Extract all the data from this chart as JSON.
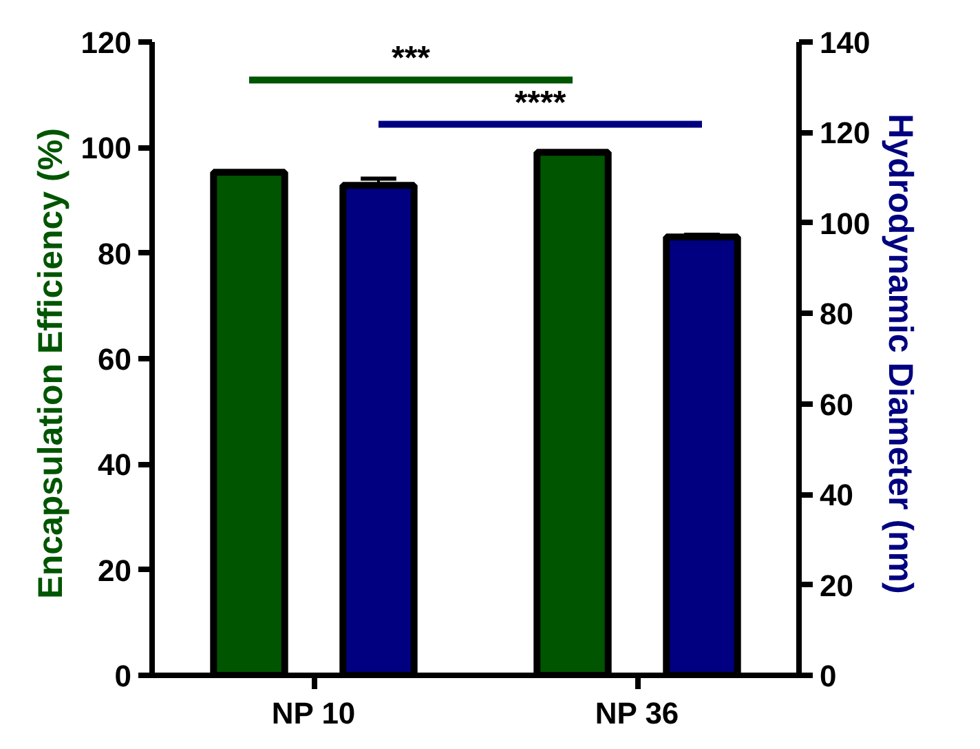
{
  "chart_data": {
    "type": "bar",
    "categories": [
      "NP 10",
      "NP 36"
    ],
    "series": [
      {
        "color": "#005500",
        "values": [
          95.3,
          99.1
        ]
      },
      {
        "color": "#000080",
        "values": [
          108.3,
          96.9
        ],
        "axis": "y2",
        "errors": [
          1.5,
          0.5
        ]
      }
    ],
    "ylabel": "Encapsulation Efficiency  (%)",
    "y2label": "Hydrodynamic  Diameter (nm)",
    "ylim": [
      0,
      120
    ],
    "yticks": [
      0,
      20,
      40,
      60,
      80,
      100,
      120
    ],
    "y2lim": [
      0,
      140
    ],
    "y2ticks": [
      0,
      20,
      40,
      60,
      80,
      100,
      120,
      140
    ],
    "annotations": [
      "***",
      "****"
    ],
    "grid": false
  }
}
